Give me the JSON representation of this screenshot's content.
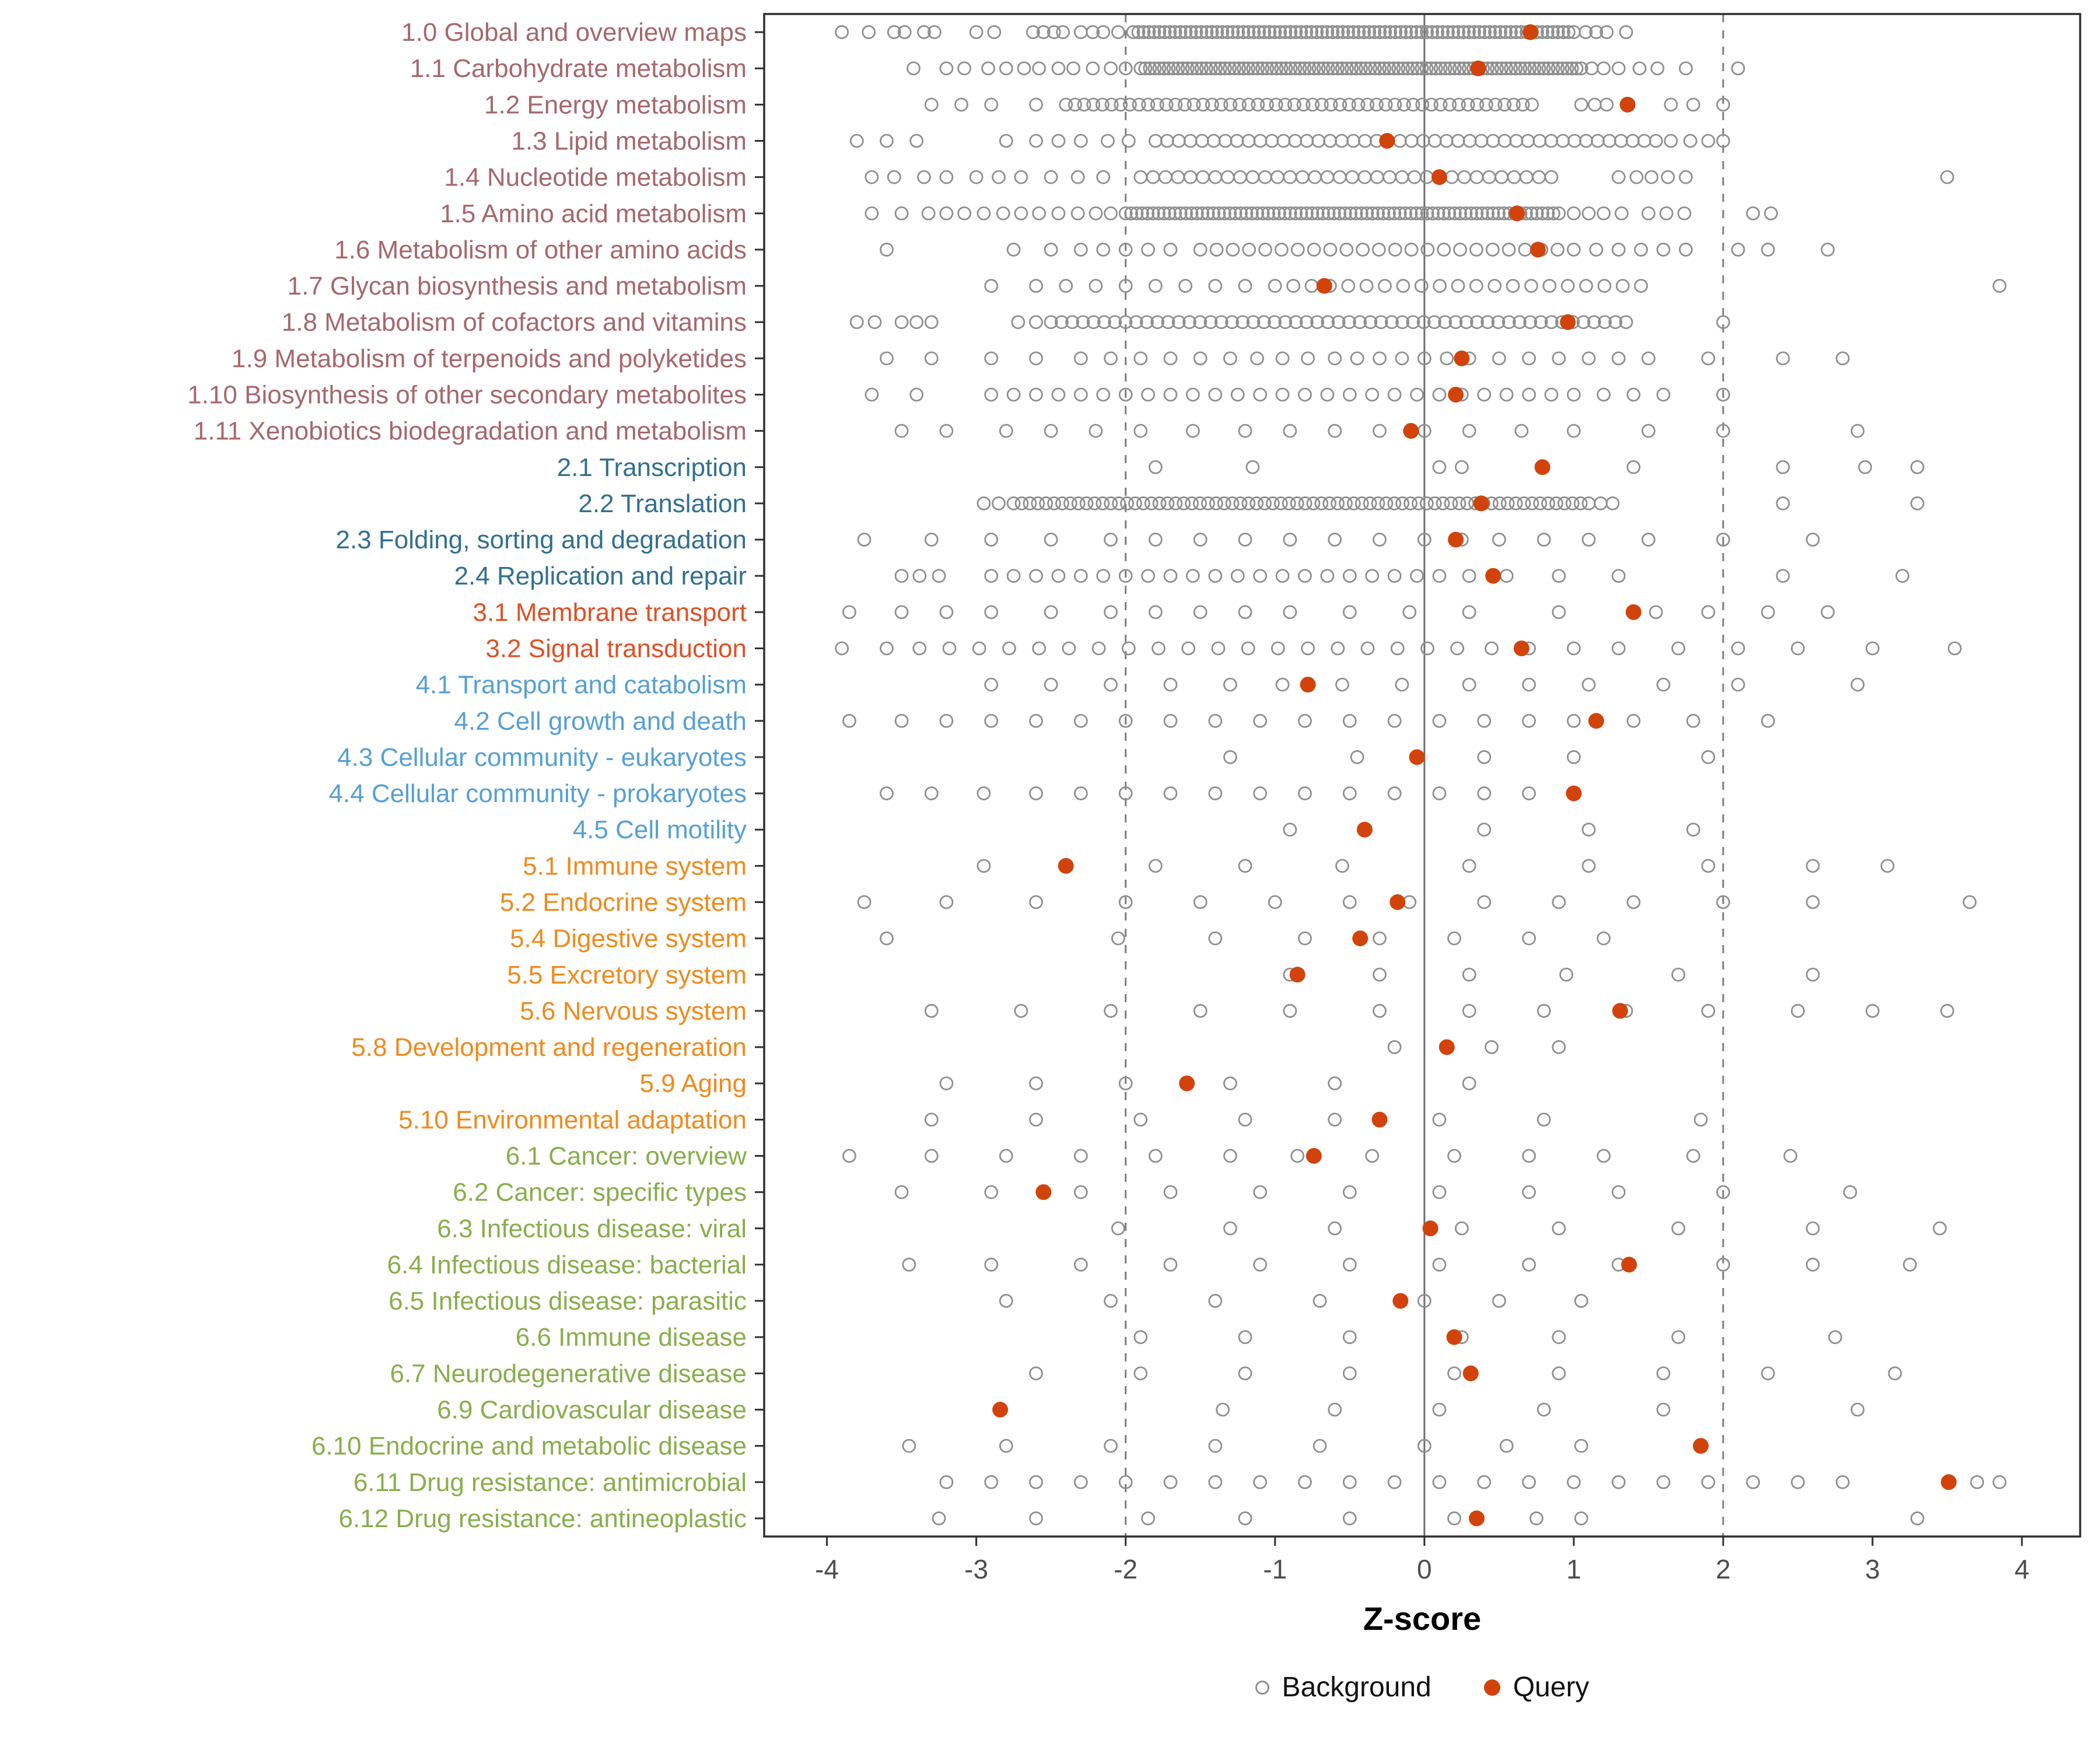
{
  "chart_data": {
    "type": "scatter",
    "xlabel": "Z-score",
    "ylabel": "",
    "xlim": [
      -4.42,
      4.39
    ],
    "x_ticks": [
      -4,
      -3,
      -2,
      -1,
      0,
      1,
      2,
      3,
      4
    ],
    "reference_lines": {
      "solid": [
        0
      ],
      "dashed": [
        -2,
        2
      ]
    },
    "legend": [
      {
        "label": "Background",
        "style": "open-circle"
      },
      {
        "label": "Query",
        "style": "filled-circle"
      }
    ],
    "colors": {
      "query": "#D2430C",
      "background_stroke": "#8F8F8F",
      "axis": "#2F2F2F",
      "tick_label": "#4D4D4D",
      "dashed_line": "#7D7D7D",
      "zero_line": "#6F6F6F"
    },
    "group_colors": {
      "1": "#A5686C",
      "2": "#31708F",
      "3": "#DE5126",
      "4": "#56A0D3",
      "5": "#F08A1D",
      "6": "#88AE4C"
    },
    "rows": [
      {
        "label": "1.0 Global and overview maps",
        "group": "1",
        "query": 0.71,
        "background": [
          -3.9,
          -3.72,
          -3.55,
          -3.48,
          -3.35,
          -3.28,
          -3.0,
          -2.88,
          -2.62,
          -2.55,
          -2.48,
          -2.42,
          -2.3,
          -2.22,
          -2.15,
          -2.05,
          1.08,
          1.15,
          1.22,
          1.35
        ],
        "background_band": {
          "from": -1.95,
          "to": 1.0,
          "n": 85
        }
      },
      {
        "label": "1.1 Carbohydrate metabolism",
        "group": "1",
        "query": 0.36,
        "background": [
          -3.42,
          -3.2,
          -3.08,
          -2.92,
          -2.8,
          -2.68,
          -2.58,
          -2.45,
          -2.35,
          -2.22,
          -2.1,
          -2.0,
          1.12,
          1.2,
          1.3,
          1.44,
          1.56,
          1.75,
          2.1
        ],
        "background_band": {
          "from": -1.9,
          "to": 1.05,
          "n": 95
        }
      },
      {
        "label": "1.2 Energy metabolism",
        "group": "1",
        "query": 1.36,
        "background": [
          -3.3,
          -3.1,
          -2.9,
          -2.6,
          1.05,
          1.14,
          1.22,
          1.65,
          1.8,
          2.0
        ],
        "background_band": {
          "from": -2.4,
          "to": 0.72,
          "n": 52
        }
      },
      {
        "label": "1.3 Lipid metabolism",
        "group": "1",
        "query": -0.25,
        "background": [
          -3.8,
          -3.6,
          -3.4,
          -2.8,
          -2.6,
          -2.45,
          -2.3,
          -2.12,
          -1.98,
          1.65,
          1.78,
          1.9,
          2.0
        ],
        "background_band": {
          "from": -1.8,
          "to": 1.55,
          "n": 44
        }
      },
      {
        "label": "1.4 Nucleotide metabolism",
        "group": "1",
        "query": 0.1,
        "background": [
          -3.7,
          -3.55,
          -3.35,
          -3.2,
          -3.0,
          -2.85,
          -2.7,
          -2.5,
          -2.32,
          -2.15,
          1.3,
          1.42,
          1.52,
          1.63,
          1.75,
          3.5
        ],
        "background_band": {
          "from": -1.9,
          "to": 0.85,
          "n": 34
        }
      },
      {
        "label": "1.5 Amino acid metabolism",
        "group": "1",
        "query": 0.62,
        "background": [
          -3.7,
          -3.5,
          -3.32,
          -3.2,
          -3.08,
          -2.95,
          -2.82,
          -2.7,
          -2.58,
          -2.45,
          -2.32,
          -2.2,
          -2.1,
          1.0,
          1.1,
          1.2,
          1.32,
          1.5,
          1.62,
          1.74,
          2.2,
          2.32
        ],
        "background_band": {
          "from": -2.0,
          "to": 0.9,
          "n": 80
        }
      },
      {
        "label": "1.6 Metabolism of other amino acids",
        "group": "1",
        "query": 0.76,
        "background": [
          -3.6,
          -2.75,
          -2.5,
          -2.3,
          -2.15,
          -2.0,
          -1.85,
          -1.7,
          1.15,
          1.3,
          1.45,
          1.6,
          1.75,
          2.1,
          2.3,
          2.7
        ],
        "background_band": {
          "from": -1.5,
          "to": 1.0,
          "n": 24
        }
      },
      {
        "label": "1.7 Glycan biosynthesis and metabolism",
        "group": "1",
        "query": -0.67,
        "background": [
          -2.9,
          -2.6,
          -2.4,
          -2.2,
          -2.0,
          -1.8,
          -1.6,
          -1.4,
          -1.2,
          3.85
        ],
        "background_band": {
          "from": -1.0,
          "to": 1.45,
          "n": 21
        }
      },
      {
        "label": "1.8 Metabolism of cofactors and vitamins",
        "group": "1",
        "query": 0.96,
        "background": [
          -3.8,
          -3.68,
          -3.5,
          -3.4,
          -3.3,
          -2.72,
          -2.6,
          2.0
        ],
        "background_band": {
          "from": -2.5,
          "to": 1.35,
          "n": 55
        }
      },
      {
        "label": "1.9 Metabolism of terpenoids and polyketides",
        "group": "1",
        "query": 0.25,
        "background": [
          -3.6,
          -3.3,
          -2.9,
          -2.6,
          -2.3,
          -2.1,
          -1.9,
          -1.7,
          -1.5,
          -1.3,
          -1.12,
          -0.95,
          -0.78,
          -0.6,
          -0.45,
          -0.3,
          -0.15,
          0.0,
          0.15,
          0.3,
          0.5,
          0.7,
          0.9,
          1.1,
          1.3,
          1.5,
          1.9,
          2.4,
          2.8
        ]
      },
      {
        "label": "1.10 Biosynthesis of other secondary metabolites",
        "group": "1",
        "query": 0.21,
        "background": [
          -3.7,
          -3.4,
          -2.9,
          -2.75,
          -2.6,
          -2.45,
          -2.3,
          -2.15,
          -2.0,
          -1.85,
          -1.7,
          -1.55,
          -1.4,
          -1.25,
          -1.1,
          -0.95,
          -0.8,
          -0.65,
          -0.5,
          -0.35,
          -0.2,
          -0.05,
          0.1,
          0.25,
          0.4,
          0.55,
          0.7,
          0.85,
          1.0,
          1.2,
          1.4,
          1.6,
          2.0
        ]
      },
      {
        "label": "1.11 Xenobiotics biodegradation and metabolism",
        "group": "1",
        "query": -0.09,
        "background": [
          -3.5,
          -3.2,
          -2.8,
          -2.5,
          -2.2,
          -1.9,
          -1.55,
          -1.2,
          -0.9,
          -0.6,
          -0.3,
          0.0,
          0.3,
          0.65,
          1.0,
          1.5,
          2.0,
          2.9
        ]
      },
      {
        "label": "2.1 Transcription",
        "group": "2",
        "query": 0.79,
        "background": [
          -1.8,
          -1.15,
          0.1,
          0.25,
          1.4,
          2.4,
          2.95,
          3.3
        ]
      },
      {
        "label": "2.2 Translation",
        "group": "2",
        "query": 0.38,
        "background": [
          -2.95,
          -2.85,
          1.18,
          1.26,
          2.4,
          3.3
        ],
        "background_band": {
          "from": -2.75,
          "to": 1.1,
          "n": 72
        }
      },
      {
        "label": "2.3 Folding, sorting and degradation",
        "group": "2",
        "query": 0.21,
        "background": [
          -3.75,
          -3.3,
          -2.9,
          -2.5,
          -2.1,
          -1.8,
          -1.5,
          -1.2,
          -0.9,
          -0.6,
          -0.3,
          0.0,
          0.25,
          0.5,
          0.8,
          1.1,
          1.5,
          2.0,
          2.6
        ]
      },
      {
        "label": "2.4 Replication and repair",
        "group": "2",
        "query": 0.46,
        "background": [
          -3.5,
          -3.38,
          -3.25,
          -2.9,
          -2.75,
          -2.6,
          -2.45,
          -2.3,
          -2.15,
          -2.0,
          -1.85,
          -1.7,
          -1.55,
          -1.4,
          -1.25,
          -1.1,
          -0.95,
          -0.8,
          -0.65,
          -0.5,
          -0.35,
          -0.2,
          -0.05,
          0.1,
          0.3,
          0.55,
          0.9,
          1.3,
          2.4,
          3.2
        ]
      },
      {
        "label": "3.1 Membrane transport",
        "group": "3",
        "query": 1.4,
        "background": [
          -3.85,
          -3.5,
          -3.2,
          -2.9,
          -2.5,
          -2.1,
          -1.8,
          -1.5,
          -1.2,
          -0.9,
          -0.5,
          -0.1,
          0.3,
          0.9,
          1.55,
          1.9,
          2.3,
          2.7
        ]
      },
      {
        "label": "3.2 Signal transduction",
        "group": "3",
        "query": 0.65,
        "background": [
          -3.9,
          -3.6,
          -3.38,
          -3.18,
          -2.98,
          -2.78,
          -2.58,
          -2.38,
          -2.18,
          -1.98,
          -1.78,
          -1.58,
          -1.38,
          -1.18,
          -0.98,
          -0.78,
          -0.58,
          -0.38,
          -0.18,
          0.02,
          0.22,
          0.45,
          0.7,
          1.0,
          1.3,
          1.7,
          2.1,
          2.5,
          3.0,
          3.55
        ]
      },
      {
        "label": "4.1 Transport and catabolism",
        "group": "4",
        "query": -0.78,
        "background": [
          -2.9,
          -2.5,
          -2.1,
          -1.7,
          -1.3,
          -0.95,
          -0.55,
          -0.15,
          0.3,
          0.7,
          1.1,
          1.6,
          2.1,
          2.9
        ]
      },
      {
        "label": "4.2 Cell growth and death",
        "group": "4",
        "query": 1.15,
        "background": [
          -3.85,
          -3.5,
          -3.2,
          -2.9,
          -2.6,
          -2.3,
          -2.0,
          -1.7,
          -1.4,
          -1.1,
          -0.8,
          -0.5,
          -0.2,
          0.1,
          0.4,
          0.7,
          1.0,
          1.4,
          1.8,
          2.3
        ]
      },
      {
        "label": "4.3 Cellular community - eukaryotes",
        "group": "4",
        "query": -0.05,
        "background": [
          -1.3,
          -0.45,
          0.4,
          1.0,
          1.9
        ]
      },
      {
        "label": "4.4 Cellular community - prokaryotes",
        "group": "4",
        "query": 1.0,
        "background": [
          -3.6,
          -3.3,
          -2.95,
          -2.6,
          -2.3,
          -2.0,
          -1.7,
          -1.4,
          -1.1,
          -0.8,
          -0.5,
          -0.2,
          0.1,
          0.4,
          0.7,
          1.0
        ]
      },
      {
        "label": "4.5 Cell motility",
        "group": "4",
        "query": -0.4,
        "background": [
          -0.9,
          0.4,
          1.1,
          1.8
        ]
      },
      {
        "label": "5.1 Immune system",
        "group": "5",
        "query": -2.4,
        "background": [
          -2.95,
          -2.4,
          -1.8,
          -1.2,
          -0.55,
          0.3,
          1.1,
          1.9,
          2.6,
          3.1
        ]
      },
      {
        "label": "5.2 Endocrine system",
        "group": "5",
        "query": -0.18,
        "background": [
          -3.75,
          -3.2,
          -2.6,
          -2.0,
          -1.5,
          -1.0,
          -0.5,
          -0.1,
          0.4,
          0.9,
          1.4,
          2.0,
          2.6,
          3.65
        ]
      },
      {
        "label": "5.4 Digestive system",
        "group": "5",
        "query": -0.43,
        "background": [
          -3.6,
          -2.05,
          -1.4,
          -0.8,
          -0.3,
          0.2,
          0.7,
          1.2
        ]
      },
      {
        "label": "5.5 Excretory system",
        "group": "5",
        "query": -0.85,
        "background": [
          -0.9,
          -0.3,
          0.3,
          0.95,
          1.7,
          2.6
        ]
      },
      {
        "label": "5.6 Nervous system",
        "group": "5",
        "query": 1.31,
        "background": [
          -3.3,
          -2.7,
          -2.1,
          -1.5,
          -0.9,
          -0.3,
          0.3,
          0.8,
          1.35,
          1.9,
          2.5,
          3.0,
          3.5
        ]
      },
      {
        "label": "5.8 Development and regeneration",
        "group": "5",
        "query": 0.15,
        "background": [
          -0.2,
          0.45,
          0.9
        ]
      },
      {
        "label": "5.9 Aging",
        "group": "5",
        "query": -1.59,
        "background": [
          -3.2,
          -2.6,
          -2.0,
          -1.3,
          -0.6,
          0.3
        ]
      },
      {
        "label": "5.10 Environmental adaptation",
        "group": "5",
        "query": -0.3,
        "background": [
          -3.3,
          -2.6,
          -1.9,
          -1.2,
          -0.6,
          0.1,
          0.8,
          1.85
        ]
      },
      {
        "label": "6.1 Cancer: overview",
        "group": "6",
        "query": -0.74,
        "background": [
          -3.85,
          -3.3,
          -2.8,
          -2.3,
          -1.8,
          -1.3,
          -0.85,
          -0.35,
          0.2,
          0.7,
          1.2,
          1.8,
          2.45
        ]
      },
      {
        "label": "6.2 Cancer: specific types",
        "group": "6",
        "query": -2.55,
        "background": [
          -3.5,
          -2.9,
          -2.3,
          -1.7,
          -1.1,
          -0.5,
          0.1,
          0.7,
          1.3,
          2.0,
          2.85
        ]
      },
      {
        "label": "6.3 Infectious disease: viral",
        "group": "6",
        "query": 0.04,
        "background": [
          -2.05,
          -1.3,
          -0.6,
          0.25,
          0.9,
          1.7,
          2.6,
          3.45
        ]
      },
      {
        "label": "6.4 Infectious disease: bacterial",
        "group": "6",
        "query": 1.37,
        "background": [
          -3.45,
          -2.9,
          -2.3,
          -1.7,
          -1.1,
          -0.5,
          0.1,
          0.7,
          1.3,
          2.0,
          2.6,
          3.25
        ]
      },
      {
        "label": "6.5 Infectious disease: parasitic",
        "group": "6",
        "query": -0.16,
        "background": [
          -2.8,
          -2.1,
          -1.4,
          -0.7,
          0.0,
          0.5,
          1.05
        ]
      },
      {
        "label": "6.6 Immune disease",
        "group": "6",
        "query": 0.2,
        "background": [
          -1.9,
          -1.2,
          -0.5,
          0.25,
          0.9,
          1.7,
          2.75
        ]
      },
      {
        "label": "6.7 Neurodegenerative disease",
        "group": "6",
        "query": 0.31,
        "background": [
          -2.6,
          -1.9,
          -1.2,
          -0.5,
          0.2,
          0.9,
          1.6,
          2.3,
          3.15
        ]
      },
      {
        "label": "6.9 Cardiovascular disease",
        "group": "6",
        "query": -2.84,
        "background": [
          -1.35,
          -0.6,
          0.1,
          0.8,
          1.6,
          2.9
        ]
      },
      {
        "label": "6.10 Endocrine and metabolic disease",
        "group": "6",
        "query": 1.85,
        "background": [
          -3.45,
          -2.8,
          -2.1,
          -1.4,
          -0.7,
          0.0,
          0.55,
          1.05
        ]
      },
      {
        "label": "6.11 Drug resistance: antimicrobial",
        "group": "6",
        "query": 3.51,
        "background": [
          -3.2,
          -2.9,
          -2.6,
          -2.3,
          -2.0,
          -1.7,
          -1.4,
          -1.1,
          -0.8,
          -0.5,
          -0.2,
          0.1,
          0.4,
          0.7,
          1.0,
          1.3,
          1.6,
          1.9,
          2.2,
          2.5,
          2.8,
          3.7,
          3.85
        ]
      },
      {
        "label": "6.12 Drug resistance: antineoplastic",
        "group": "6",
        "query": 0.35,
        "background": [
          -3.25,
          -2.6,
          -1.85,
          -1.2,
          -0.5,
          0.2,
          0.75,
          1.05,
          3.3
        ]
      }
    ]
  }
}
